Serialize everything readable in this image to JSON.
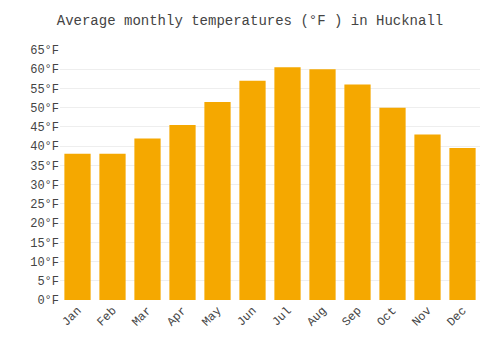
{
  "chart_data": {
    "type": "bar",
    "title": "Average monthly temperatures (°F ) in Hucknall",
    "categories": [
      "Jan",
      "Feb",
      "Mar",
      "Apr",
      "May",
      "Jun",
      "Jul",
      "Aug",
      "Sep",
      "Oct",
      "Nov",
      "Dec"
    ],
    "values": [
      38,
      38,
      42,
      45.5,
      51.5,
      57,
      60.5,
      60,
      56,
      50,
      43,
      39.5
    ],
    "color": "#F5A800",
    "ylim": [
      0,
      65
    ],
    "yticks": [
      {
        "value": 0,
        "label": "0°F"
      },
      {
        "value": 5,
        "label": "5°F"
      },
      {
        "value": 10,
        "label": "10°F"
      },
      {
        "value": 15,
        "label": "15°F"
      },
      {
        "value": 20,
        "label": "20°F"
      },
      {
        "value": 25,
        "label": "25°F"
      },
      {
        "value": 30,
        "label": "30°F"
      },
      {
        "value": 35,
        "label": "35°F"
      },
      {
        "value": 40,
        "label": "40°F"
      },
      {
        "value": 45,
        "label": "45°F"
      },
      {
        "value": 50,
        "label": "50°F"
      },
      {
        "value": 55,
        "label": "55°F"
      },
      {
        "value": 60,
        "label": "60°F"
      },
      {
        "value": 65,
        "label": "65°F"
      }
    ],
    "grid": true
  }
}
